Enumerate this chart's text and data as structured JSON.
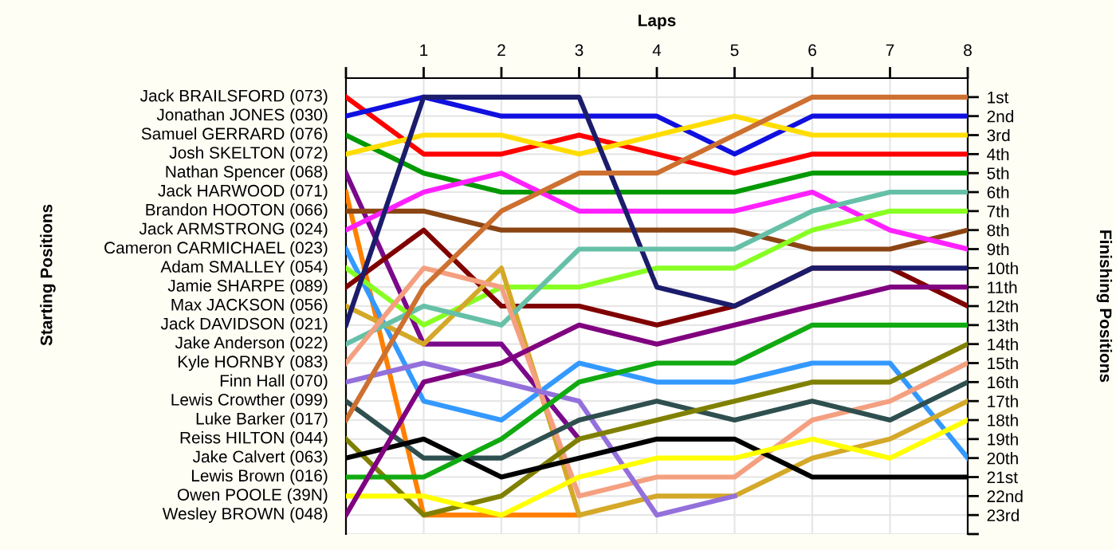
{
  "chart_data": {
    "type": "line",
    "xlabel": "Laps",
    "ylabel": "Finishing Positions",
    "annotations": [
      "Starting Positions"
    ],
    "x": [
      0,
      1,
      2,
      3,
      4,
      5,
      6,
      7,
      8
    ],
    "xlim": [
      0,
      8
    ],
    "xticks": [
      {
        "value": 0,
        "label": null
      },
      1,
      2,
      3,
      4,
      5,
      6,
      7,
      8
    ],
    "ylim": [
      24,
      0
    ],
    "yticks": [
      {
        "value": 1,
        "label": "1st"
      },
      {
        "value": 2,
        "label": "2nd"
      },
      {
        "value": 3,
        "label": "3rd"
      },
      {
        "value": 4,
        "label": "4th"
      },
      {
        "value": 5,
        "label": "5th"
      },
      {
        "value": 6,
        "label": "6th"
      },
      {
        "value": 7,
        "label": "7th"
      },
      {
        "value": 8,
        "label": "8th"
      },
      {
        "value": 9,
        "label": "9th"
      },
      {
        "value": 10,
        "label": "10th"
      },
      {
        "value": 11,
        "label": "11th"
      },
      {
        "value": 12,
        "label": "12th"
      },
      {
        "value": 13,
        "label": "13th"
      },
      {
        "value": 14,
        "label": "14th"
      },
      {
        "value": 15,
        "label": "15th"
      },
      {
        "value": 16,
        "label": "16th"
      },
      {
        "value": 17,
        "label": "17th"
      },
      {
        "value": 18,
        "label": "18th"
      },
      {
        "value": 19,
        "label": "19th"
      },
      {
        "value": 20,
        "label": "20th"
      },
      {
        "value": 21,
        "label": "21st"
      },
      {
        "value": 22,
        "label": "22nd"
      },
      {
        "value": 23,
        "label": "23rd"
      },
      {
        "value": 24,
        "label": null
      }
    ],
    "grid": true,
    "line_style": "solid",
    "series": [
      {
        "name": "Jack BRAILSFORD (073)",
        "color": "#ff0000",
        "values": [
          1,
          4,
          4,
          3,
          4,
          5,
          4,
          4,
          4
        ]
      },
      {
        "name": "Jonathan JONES (030)",
        "color": "#1010e0",
        "values": [
          2,
          1,
          2,
          2,
          2,
          4,
          2,
          2,
          2
        ]
      },
      {
        "name": "Samuel GERRARD (076)",
        "color": "#009900",
        "values": [
          3,
          5,
          6,
          6,
          6,
          6,
          5,
          5,
          5
        ]
      },
      {
        "name": "Josh SKELTON (072)",
        "color": "#ffdd00",
        "values": [
          4,
          3,
          3,
          4,
          3,
          2,
          3,
          3,
          3
        ]
      },
      {
        "name": "Nathan Spencer (068)",
        "color": "#7a0a8a",
        "values": [
          5,
          14,
          14,
          19,
          null,
          null,
          null,
          null,
          null
        ]
      },
      {
        "name": "Jack HARWOOD (071)",
        "color": "#ff8000",
        "values": [
          6,
          23,
          23,
          23,
          null,
          null,
          null,
          null,
          null
        ]
      },
      {
        "name": "Brandon HOOTON (066)",
        "color": "#8b4513",
        "values": [
          7,
          7,
          8,
          8,
          8,
          8,
          9,
          9,
          8
        ]
      },
      {
        "name": "Jack ARMSTRONG (024)",
        "color": "#ff20ff",
        "values": [
          8,
          6,
          5,
          7,
          7,
          7,
          6,
          8,
          9
        ]
      },
      {
        "name": "Cameron CARMICHAEL (023)",
        "color": "#3399ff",
        "values": [
          9,
          17,
          18,
          15,
          16,
          16,
          15,
          15,
          20
        ]
      },
      {
        "name": "Adam SMALLEY (054)",
        "color": "#88ff22",
        "values": [
          10,
          13,
          11,
          11,
          10,
          10,
          8,
          7,
          7
        ]
      },
      {
        "name": "Jamie SHARPE (089)",
        "color": "#800000",
        "values": [
          11,
          8,
          12,
          12,
          13,
          12,
          10,
          10,
          12
        ]
      },
      {
        "name": "Max JACKSON (056)",
        "color": "#d4a828",
        "values": [
          12,
          14,
          10,
          23,
          22,
          22,
          20,
          19,
          17
        ]
      },
      {
        "name": "Jack DAVIDSON (021)",
        "color": "#1c1c6c",
        "values": [
          13,
          1,
          1,
          1,
          11,
          12,
          10,
          10,
          10
        ]
      },
      {
        "name": "Jake Anderson (022)",
        "color": "#66c0a8",
        "values": [
          14,
          12,
          13,
          9,
          9,
          9,
          7,
          6,
          6
        ]
      },
      {
        "name": "Kyle HORNBY (083)",
        "color": "#f4a080",
        "values": [
          15,
          10,
          11,
          22,
          21,
          21,
          18,
          17,
          15
        ]
      },
      {
        "name": "Finn Hall (070)",
        "color": "#9370db",
        "values": [
          16,
          15,
          16,
          17,
          23,
          22,
          null,
          null,
          null
        ]
      },
      {
        "name": "Lewis Crowther (099)",
        "color": "#2f4f4f",
        "values": [
          17,
          20,
          20,
          18,
          17,
          18,
          17,
          18,
          16
        ]
      },
      {
        "name": "Luke Barker (017)",
        "color": "#cd7030",
        "values": [
          18,
          11,
          7,
          5,
          5,
          3,
          1,
          1,
          1
        ]
      },
      {
        "name": "Reiss HILTON (044)",
        "color": "#808000",
        "values": [
          19,
          23,
          22,
          19,
          18,
          17,
          16,
          16,
          14
        ]
      },
      {
        "name": "Jake Calvert (063)",
        "color": "#000000",
        "values": [
          20,
          19,
          21,
          20,
          19,
          19,
          21,
          21,
          21
        ]
      },
      {
        "name": "Lewis Brown (016)",
        "color": "#11aa11",
        "values": [
          21,
          21,
          19,
          16,
          15,
          15,
          13,
          13,
          13
        ]
      },
      {
        "name": "Owen POOLE (39N)",
        "color": "#ffff00",
        "values": [
          22,
          22,
          23,
          21,
          20,
          20,
          19,
          20,
          18
        ]
      },
      {
        "name": "Wesley BROWN (048)",
        "color": "#800080",
        "values": [
          23,
          16,
          15,
          13,
          14,
          13,
          12,
          11,
          11
        ]
      }
    ]
  }
}
